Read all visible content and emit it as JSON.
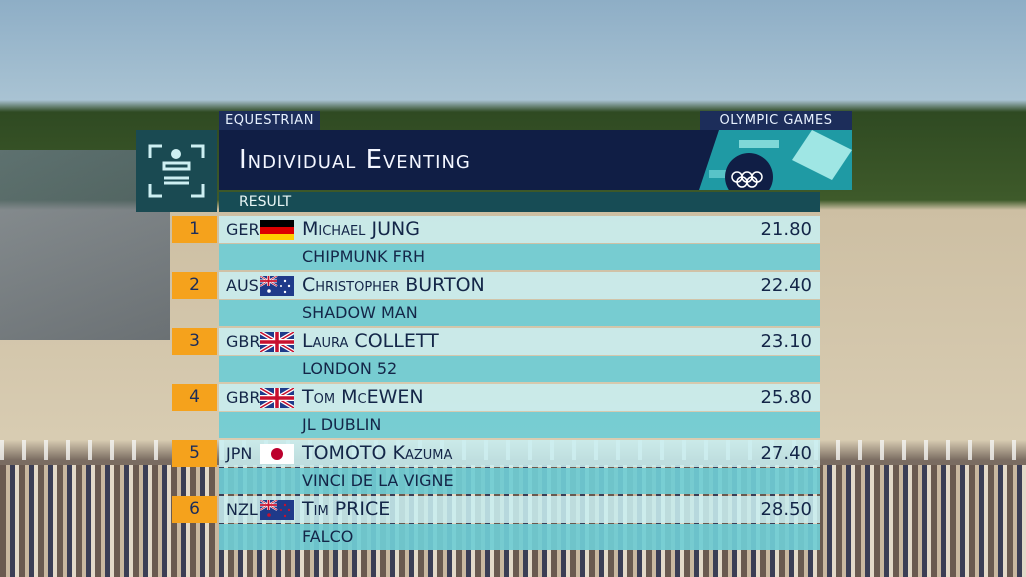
{
  "header": {
    "sport": "EQUESTRIAN",
    "brand": "OLYMPIC GAMES",
    "title": "Individual Eventing",
    "subtitle": "RESULT"
  },
  "table": {
    "rows": [
      {
        "rank": "1",
        "noc": "GER",
        "athlete": "Michael JUNG",
        "horse": "CHIPMUNK FRH",
        "score": "21.80"
      },
      {
        "rank": "2",
        "noc": "AUS",
        "athlete": "Christopher BURTON",
        "horse": "SHADOW MAN",
        "score": "22.40"
      },
      {
        "rank": "3",
        "noc": "GBR",
        "athlete": "Laura COLLETT",
        "horse": "LONDON 52",
        "score": "23.10"
      },
      {
        "rank": "4",
        "noc": "GBR",
        "athlete": "Tom McEWEN",
        "horse": "JL DUBLIN",
        "score": "25.80"
      },
      {
        "rank": "5",
        "noc": "JPN",
        "athlete": "TOMOTO Kazuma",
        "horse": "VINCI DE LA VIGNE",
        "score": "27.40"
      },
      {
        "rank": "6",
        "noc": "NZL",
        "athlete": "Tim PRICE",
        "horse": "FALCO",
        "score": "28.50"
      }
    ]
  }
}
